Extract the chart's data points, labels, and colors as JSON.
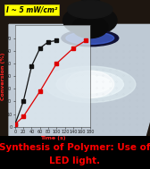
{
  "title_line1": "Synthesis of Polymer: Use of",
  "title_line2": "LED light.",
  "title_color": "#ff0000",
  "title_fontsize": 7.5,
  "annotation_text": "I ~ 5 mW/cm²",
  "annotation_bg": "#ffff00",
  "annotation_color": "#000000",
  "annotation_fontsize": 5.5,
  "xlabel": "Time (s)",
  "ylabel": "Conversion (%)",
  "xlabel_color": "#ff2222",
  "ylabel_color": "#ff2222",
  "axis_label_fontsize": 4.5,
  "tick_fontsize": 3.5,
  "xlim": [
    0,
    180
  ],
  "ylim": [
    0,
    80
  ],
  "xticks": [
    0,
    20,
    40,
    60,
    80,
    100,
    120,
    140,
    160,
    180
  ],
  "yticks": [
    0,
    10,
    20,
    30,
    40,
    50,
    60,
    70
  ],
  "black_line_x": [
    0,
    20,
    40,
    60,
    80,
    100
  ],
  "black_line_y": [
    2,
    20,
    48,
    62,
    67,
    68
  ],
  "red_line_x": [
    0,
    20,
    60,
    100,
    140,
    170
  ],
  "red_line_y": [
    2,
    8,
    28,
    50,
    62,
    68
  ],
  "line1_color": "#111111",
  "line2_color": "#dd0000",
  "marker": "s",
  "linewidth": 0.9,
  "markersize": 2.2,
  "plot_bg_color": "#dde8ef",
  "plot_alpha": 0.82,
  "scene_bg_dark": "#1a1410",
  "table_color": "#c5ced8",
  "glow_color1": "#c8e8f0",
  "glow_color2": "#e4f4f8",
  "lamp_dark": "#0d0d0d",
  "lamp_body": "#1c1c1c",
  "lamp_ring_blue": "#2233aa",
  "led_glow": "#4466dd"
}
